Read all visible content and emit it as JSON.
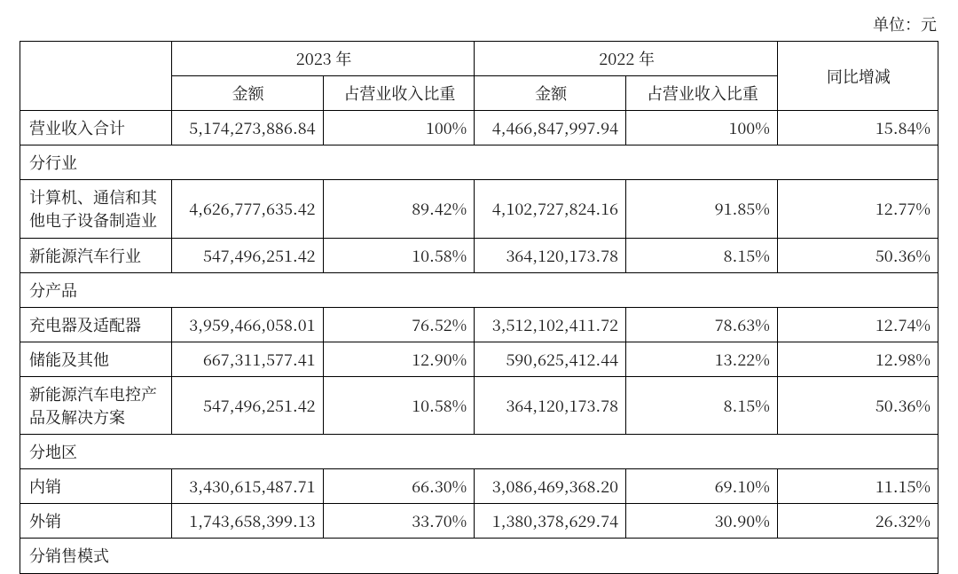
{
  "unit_text": "单位：元",
  "header": {
    "year_2023": "2023 年",
    "year_2022": "2022 年",
    "amount": "金额",
    "pct_of_rev": "占营业收入比重",
    "yoy": "同比增减"
  },
  "rows": {
    "total_rev": {
      "label": "营业收入合计",
      "amt23": "5,174,273,886.84",
      "pct23": "100%",
      "amt22": "4,466,847,997.94",
      "pct22": "100%",
      "yoy": "15.84%"
    },
    "sec_industry": {
      "label": "分行业"
    },
    "ind_comm_elec": {
      "label": "计算机、通信和其他电子设备制造业",
      "amt23": "4,626,777,635.42",
      "pct23": "89.42%",
      "amt22": "4,102,727,824.16",
      "pct22": "91.85%",
      "yoy": "12.77%"
    },
    "ind_nev": {
      "label": "新能源汽车行业",
      "amt23": "547,496,251.42",
      "pct23": "10.58%",
      "amt22": "364,120,173.78",
      "pct22": "8.15%",
      "yoy": "50.36%"
    },
    "sec_product": {
      "label": "分产品"
    },
    "prod_charger": {
      "label": "充电器及适配器",
      "amt23": "3,959,466,058.01",
      "pct23": "76.52%",
      "amt22": "3,512,102,411.72",
      "pct22": "78.63%",
      "yoy": "12.74%"
    },
    "prod_storage": {
      "label": "储能及其他",
      "amt23": "667,311,577.41",
      "pct23": "12.90%",
      "amt22": "590,625,412.44",
      "pct22": "13.22%",
      "yoy": "12.98%"
    },
    "prod_nev_ctrl": {
      "label": "新能源汽车电控产品及解决方案",
      "amt23": "547,496,251.42",
      "pct23": "10.58%",
      "amt22": "364,120,173.78",
      "pct22": "8.15%",
      "yoy": "50.36%"
    },
    "sec_region": {
      "label": "分地区"
    },
    "reg_domestic": {
      "label": "内销",
      "amt23": "3,430,615,487.71",
      "pct23": "66.30%",
      "amt22": "3,086,469,368.20",
      "pct22": "69.10%",
      "yoy": "11.15%"
    },
    "reg_export": {
      "label": "外销",
      "amt23": "1,743,658,399.13",
      "pct23": "33.70%",
      "amt22": "1,380,378,629.74",
      "pct22": "30.90%",
      "yoy": "26.32%"
    },
    "sec_salesmode": {
      "label": "分销售模式"
    }
  },
  "style": {
    "border_color": "#000000",
    "bg_color": "#ffffff",
    "text_color": "#1a1a1a",
    "font_size_pt": 14,
    "font_family": "SimSun / Noto Serif CJK SC",
    "column_widths_pct": [
      16.5,
      16.5,
      16.5,
      16.5,
      16.5,
      17.5
    ],
    "alignment": {
      "label": "left",
      "numeric": "right",
      "header": "center"
    }
  }
}
